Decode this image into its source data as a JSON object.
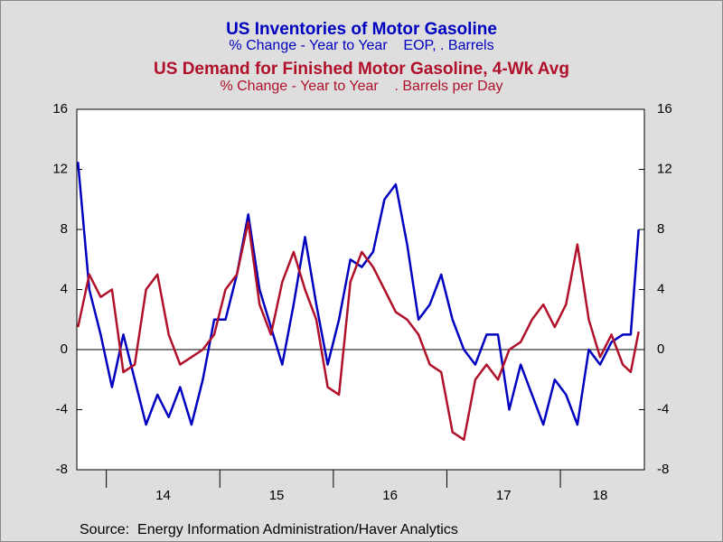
{
  "chart_data": {
    "type": "line",
    "source": "Source:  Energy Information Administration/Haver Analytics",
    "x": [
      13.75,
      13.85,
      13.95,
      14.05,
      14.15,
      14.25,
      14.35,
      14.45,
      14.55,
      14.65,
      14.75,
      14.85,
      14.95,
      15.05,
      15.15,
      15.25,
      15.35,
      15.45,
      15.55,
      15.65,
      15.75,
      15.85,
      15.95,
      16.05,
      16.15,
      16.25,
      16.35,
      16.45,
      16.55,
      16.65,
      16.75,
      16.85,
      16.95,
      17.05,
      17.15,
      17.25,
      17.35,
      17.45,
      17.55,
      17.65,
      17.75,
      17.85,
      17.95,
      18.05,
      18.15,
      18.25,
      18.35,
      18.45,
      18.55,
      18.62,
      18.69
    ],
    "series": [
      {
        "name": "US Inventories of Motor Gasoline",
        "subtitle": "% Change - Year to Year    EOP, . Barrels",
        "color": "#0000c0",
        "values": [
          12.5,
          4,
          1,
          -2.5,
          1,
          -2,
          -5,
          -3,
          -4.5,
          -2.5,
          -5,
          -2,
          2,
          2,
          5,
          9,
          4,
          1.5,
          -1,
          3,
          7.5,
          3,
          -1,
          2,
          6,
          5.5,
          6.5,
          10,
          11,
          7,
          2,
          3,
          5,
          2,
          0,
          -1,
          1,
          1,
          -4,
          -1,
          -3,
          -5,
          -2,
          -3,
          -5,
          0,
          -1,
          0.5,
          1,
          1,
          8
        ]
      },
      {
        "name": "US Demand for Finished Motor Gasoline, 4-Wk Avg",
        "subtitle": "% Change - Year to Year    . Barrels per Day",
        "color": "#b0102a",
        "axis": "y2",
        "values": [
          1.5,
          5,
          3.5,
          4,
          -1.5,
          -1,
          4,
          5,
          1,
          -1,
          -0.5,
          0,
          1,
          4,
          5,
          8.5,
          3,
          1,
          4.5,
          6.5,
          4,
          2,
          -2.5,
          -3,
          4.5,
          6.5,
          5.5,
          4,
          2.5,
          2,
          1,
          -1,
          -1.5,
          -5.5,
          -6,
          -2,
          -1,
          -2,
          0,
          0.5,
          2,
          3,
          1.5,
          3,
          7,
          2,
          -0.5,
          1,
          -1,
          -1.5,
          1.2
        ]
      }
    ],
    "xlim": [
      13.74,
      18.74
    ],
    "xticks": [
      14,
      15,
      16,
      17,
      18
    ],
    "xlabels": [
      {
        "value": 14.5,
        "label": "14"
      },
      {
        "value": 15.5,
        "label": "15"
      },
      {
        "value": 16.5,
        "label": "16"
      },
      {
        "value": 17.5,
        "label": "17"
      },
      {
        "value": 18.35,
        "label": "18"
      }
    ],
    "ylim": [
      -8,
      16
    ],
    "yticks": [
      -8,
      -4,
      0,
      4,
      8,
      12,
      16
    ],
    "y2lim": [
      -8,
      16
    ],
    "y2ticks": [
      -8,
      -4,
      0,
      4,
      8,
      12,
      16
    ],
    "zero_line": true
  }
}
